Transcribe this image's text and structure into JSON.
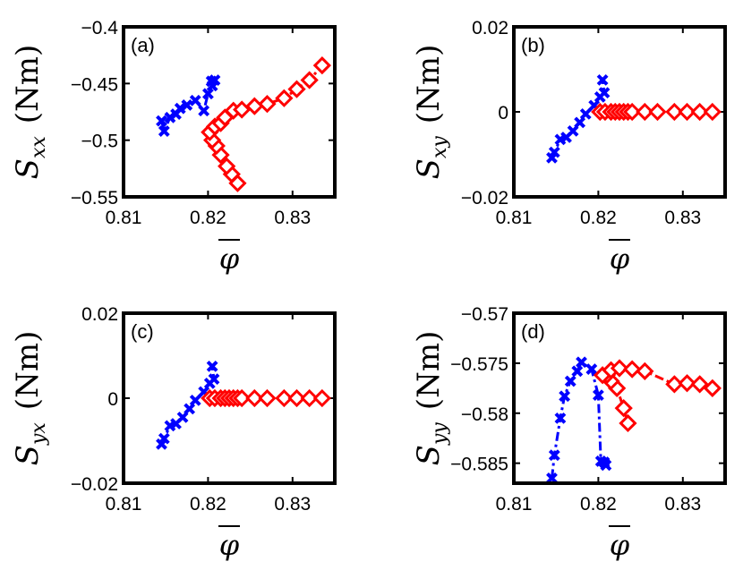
{
  "chart_data": [
    {
      "type": "line",
      "panel_label": "(a)",
      "ylabel": {
        "symbol": "S",
        "subscript": "xx",
        "unit": "(Nm)"
      },
      "xlabel": "φ",
      "xlim": [
        0.81,
        0.835
      ],
      "ylim": [
        -0.55,
        -0.4
      ],
      "xticks": [
        0.81,
        0.82,
        0.83
      ],
      "xtick_labels": [
        "0.81",
        "0.82",
        "0.83"
      ],
      "yticks": [
        -0.55,
        -0.5,
        -0.45,
        -0.4
      ],
      "ytick_labels": [
        "−0.55",
        "−0.5",
        "−0.45",
        "−0.4"
      ],
      "series": [
        {
          "name": "blue",
          "color": "#0000ff",
          "marker": "x",
          "x": [
            0.8145,
            0.8148,
            0.8155,
            0.8162,
            0.8167,
            0.8175,
            0.8185,
            0.8195,
            0.82,
            0.8205,
            0.8208,
            0.8204
          ],
          "y": [
            -0.483,
            -0.492,
            -0.48,
            -0.477,
            -0.472,
            -0.469,
            -0.465,
            -0.474,
            -0.459,
            -0.452,
            -0.447,
            -0.448
          ]
        },
        {
          "name": "red",
          "color": "#ff0000",
          "marker": "diamond",
          "x": [
            0.8235,
            0.8228,
            0.8222,
            0.8215,
            0.821,
            0.8205,
            0.8202,
            0.8208,
            0.8215,
            0.822,
            0.823,
            0.824,
            0.8255,
            0.827,
            0.829,
            0.8305,
            0.832,
            0.8335
          ],
          "y": [
            -0.538,
            -0.53,
            -0.523,
            -0.513,
            -0.505,
            -0.5,
            -0.493,
            -0.488,
            -0.485,
            -0.48,
            -0.474,
            -0.473,
            -0.47,
            -0.468,
            -0.463,
            -0.455,
            -0.447,
            -0.434
          ]
        }
      ]
    },
    {
      "type": "line",
      "panel_label": "(b)",
      "ylabel": {
        "symbol": "S",
        "subscript": "xy",
        "unit": "(Nm)"
      },
      "xlabel": "φ",
      "xlim": [
        0.81,
        0.835
      ],
      "ylim": [
        -0.02,
        0.02
      ],
      "xticks": [
        0.81,
        0.82,
        0.83
      ],
      "xtick_labels": [
        "0.81",
        "0.82",
        "0.83"
      ],
      "yticks": [
        -0.02,
        0,
        0.02
      ],
      "ytick_labels": [
        "−0.02",
        "0",
        "0.02"
      ],
      "series": [
        {
          "name": "blue",
          "color": "#0000ff",
          "marker": "x",
          "x": [
            0.8145,
            0.8148,
            0.8155,
            0.8162,
            0.817,
            0.8178,
            0.8185,
            0.8195,
            0.8202,
            0.8207,
            0.8205
          ],
          "y": [
            -0.0108,
            -0.0095,
            -0.0065,
            -0.006,
            -0.0045,
            -0.0025,
            -0.0005,
            0.0015,
            0.0035,
            0.0045,
            0.0075
          ]
        },
        {
          "name": "red",
          "color": "#ff0000",
          "marker": "diamond",
          "x": [
            0.8202,
            0.8208,
            0.8215,
            0.822,
            0.8225,
            0.823,
            0.8235,
            0.824,
            0.8255,
            0.827,
            0.829,
            0.8305,
            0.832,
            0.8335
          ],
          "y": [
            0.0,
            0.0,
            0.0,
            0.0,
            0.0,
            0.0,
            0.0,
            0.0,
            0.0,
            0.0,
            0.0,
            0.0,
            0.0,
            0.0
          ]
        }
      ]
    },
    {
      "type": "line",
      "panel_label": "(c)",
      "ylabel": {
        "symbol": "S",
        "subscript": "yx",
        "unit": "(Nm)"
      },
      "xlabel": "φ",
      "xlim": [
        0.81,
        0.835
      ],
      "ylim": [
        -0.02,
        0.02
      ],
      "xticks": [
        0.81,
        0.82,
        0.83
      ],
      "xtick_labels": [
        "0.81",
        "0.82",
        "0.83"
      ],
      "yticks": [
        -0.02,
        0,
        0.02
      ],
      "ytick_labels": [
        "−0.02",
        "0",
        "0.02"
      ],
      "series": [
        {
          "name": "blue",
          "color": "#0000ff",
          "marker": "x",
          "x": [
            0.8145,
            0.8148,
            0.8155,
            0.8162,
            0.817,
            0.8178,
            0.8185,
            0.8195,
            0.8202,
            0.8207,
            0.8205
          ],
          "y": [
            -0.0108,
            -0.0095,
            -0.0065,
            -0.006,
            -0.0045,
            -0.0025,
            -0.0005,
            0.0015,
            0.0035,
            0.0045,
            0.0075
          ]
        },
        {
          "name": "red",
          "color": "#ff0000",
          "marker": "diamond",
          "x": [
            0.8202,
            0.8208,
            0.8215,
            0.822,
            0.8225,
            0.823,
            0.8235,
            0.824,
            0.8255,
            0.827,
            0.829,
            0.8305,
            0.832,
            0.8335
          ],
          "y": [
            0.0,
            0.0,
            0.0,
            0.0,
            0.0,
            0.0,
            0.0,
            0.0,
            0.0,
            0.0,
            0.0,
            0.0,
            0.0,
            0.0
          ]
        }
      ]
    },
    {
      "type": "line",
      "panel_label": "(d)",
      "ylabel": {
        "symbol": "S",
        "subscript": "yy",
        "unit": "(Nm)"
      },
      "xlabel": "φ",
      "xlim": [
        0.81,
        0.835
      ],
      "ylim": [
        -0.587,
        -0.57
      ],
      "xticks": [
        0.81,
        0.82,
        0.83
      ],
      "xtick_labels": [
        "0.81",
        "0.82",
        "0.83"
      ],
      "yticks": [
        -0.585,
        -0.58,
        -0.575,
        -0.57
      ],
      "ytick_labels": [
        "−0.585",
        "−0.58",
        "−0.575",
        "−0.57"
      ],
      "series": [
        {
          "name": "blue",
          "color": "#0000ff",
          "marker": "x",
          "x": [
            0.8145,
            0.8148,
            0.8155,
            0.816,
            0.8167,
            0.8175,
            0.818,
            0.8192,
            0.82,
            0.8203,
            0.8207,
            0.8209
          ],
          "y": [
            -0.5865,
            -0.5842,
            -0.5805,
            -0.5783,
            -0.5768,
            -0.5758,
            -0.5749,
            -0.5756,
            -0.5782,
            -0.5848,
            -0.5849,
            -0.5852
          ]
        },
        {
          "name": "red",
          "color": "#ff0000",
          "marker": "diamond",
          "x": [
            0.8235,
            0.823,
            0.8222,
            0.8215,
            0.821,
            0.8205,
            0.8215,
            0.8225,
            0.824,
            0.8255,
            0.829,
            0.8305,
            0.832,
            0.8335
          ],
          "y": [
            -0.581,
            -0.5795,
            -0.5775,
            -0.5768,
            -0.5762,
            -0.5762,
            -0.5757,
            -0.5755,
            -0.5756,
            -0.5758,
            -0.5771,
            -0.577,
            -0.5771,
            -0.5775
          ]
        }
      ]
    }
  ]
}
